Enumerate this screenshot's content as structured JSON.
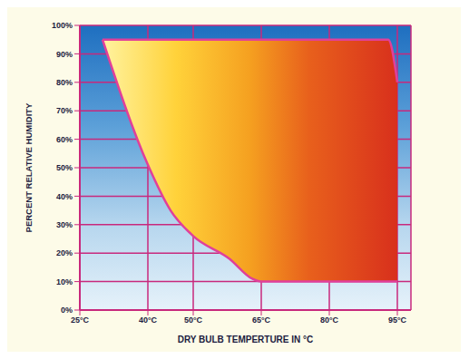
{
  "chart_data": {
    "type": "area",
    "x_label": "DRY BULB TEMPERTURE IN °C",
    "y_label": "PERCENT RELATIVE HUMIDITY",
    "x": [
      30,
      40,
      45,
      50,
      58,
      63,
      65,
      93,
      95
    ],
    "low": [
      95,
      51,
      35,
      26,
      18,
      11,
      10,
      10,
      10
    ],
    "high": [
      95,
      95,
      95,
      95,
      95,
      95,
      95,
      95,
      80
    ],
    "color": "#e0409a",
    "xlim": [
      25,
      98
    ],
    "xticks": [
      {
        "value": 25,
        "label": "25°C"
      },
      {
        "value": 40,
        "label": "40°C"
      },
      {
        "value": 50,
        "label": "50°C"
      },
      {
        "value": 65,
        "label": "65°C"
      },
      {
        "value": 80,
        "label": "80°C"
      },
      {
        "value": 95,
        "label": "95°C"
      }
    ],
    "ylim": [
      0,
      100
    ],
    "yticks": [
      {
        "value": 0,
        "label": "0%"
      },
      {
        "value": 10,
        "label": "10%"
      },
      {
        "value": 20,
        "label": "20%"
      },
      {
        "value": 30,
        "label": "30%"
      },
      {
        "value": 40,
        "label": "40%"
      },
      {
        "value": 50,
        "label": "50%"
      },
      {
        "value": 60,
        "label": "60%"
      },
      {
        "value": 70,
        "label": "70%"
      },
      {
        "value": 80,
        "label": "80%"
      },
      {
        "value": 90,
        "label": "90%"
      },
      {
        "value": 100,
        "label": "100%"
      }
    ],
    "grid": true
  }
}
